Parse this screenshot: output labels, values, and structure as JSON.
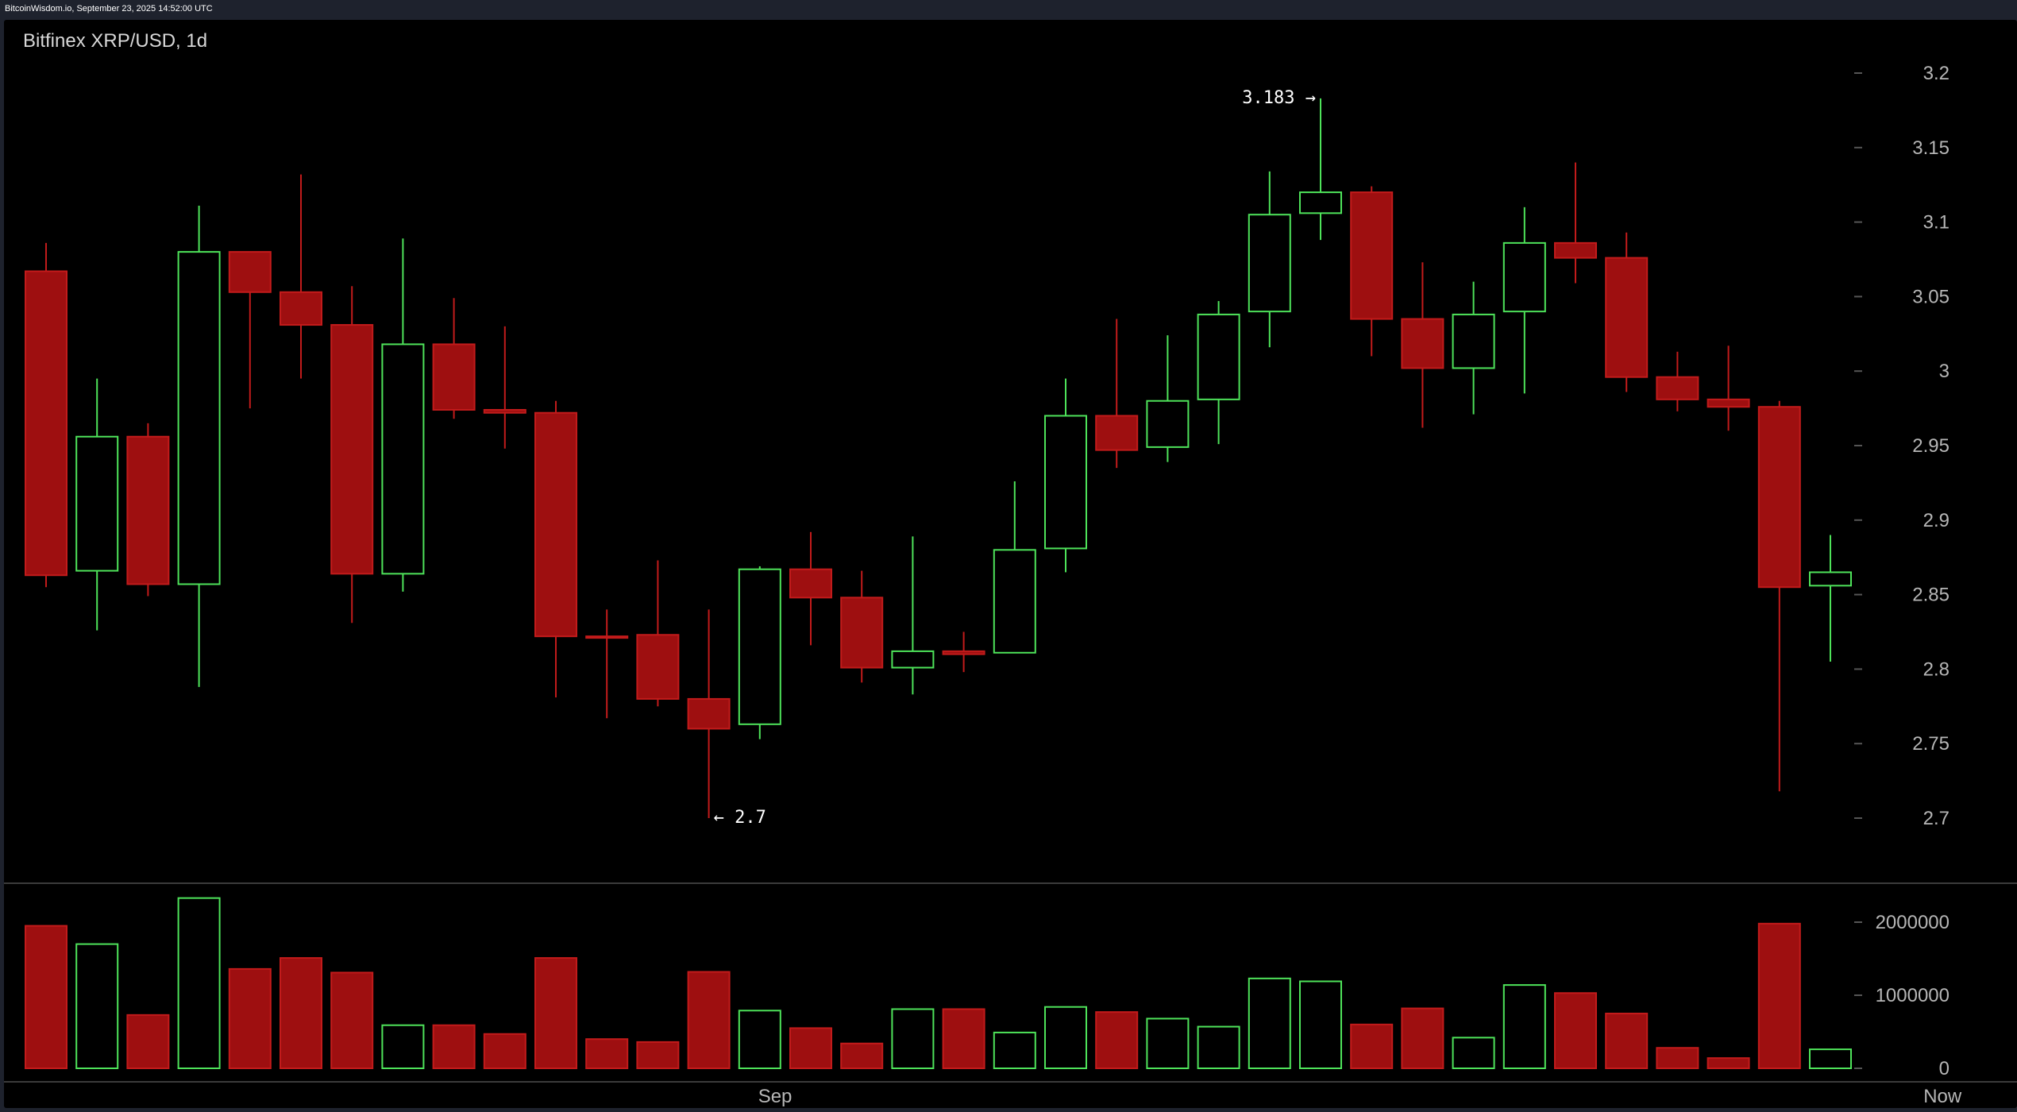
{
  "source_line": "BitcoinWisdom.io, September 23, 2025 14:52:00 UTC",
  "title": "Bitfinex XRP/USD, 1d",
  "colors": {
    "up": "#4ee35a",
    "down": "#9e0f10",
    "down_border": "#c21b1b",
    "axis_text": "#b6b6b6",
    "background": "#000000"
  },
  "chart_data": {
    "type": "candlestick",
    "title": "Bitfinex XRP/USD, 1d",
    "exchange": "Bitfinex",
    "pair": "XRP/USD",
    "interval": "1d",
    "price_ylim": [
      2.68,
      3.22
    ],
    "price_ticks": [
      "2.7",
      "2.75",
      "2.8",
      "2.85",
      "2.9",
      "2.95",
      "3",
      "3.05",
      "3.1",
      "3.15",
      "3.2"
    ],
    "volume_ylim": [
      0,
      2500000
    ],
    "volume_ticks": [
      "0",
      "1000000",
      "2000000"
    ],
    "x_labels": [
      {
        "label": "Sep",
        "index": 14.3
      },
      {
        "label": "Now",
        "index": 37.2
      }
    ],
    "annotations": [
      {
        "text": "3.183 →",
        "index": 25,
        "price": 3.183
      },
      {
        "text": "← 2.7",
        "index": 13,
        "price": 2.7
      }
    ],
    "candles": [
      {
        "open": 3.067,
        "high": 3.086,
        "low": 2.855,
        "close": 2.863,
        "volume": 1950000
      },
      {
        "open": 2.866,
        "high": 2.995,
        "low": 2.826,
        "close": 2.956,
        "volume": 1700000
      },
      {
        "open": 2.956,
        "high": 2.965,
        "low": 2.849,
        "close": 2.857,
        "volume": 730000
      },
      {
        "open": 2.857,
        "high": 3.111,
        "low": 2.788,
        "close": 3.08,
        "volume": 2330000
      },
      {
        "open": 3.08,
        "high": 3.08,
        "low": 2.975,
        "close": 3.053,
        "volume": 1360000
      },
      {
        "open": 3.053,
        "high": 3.132,
        "low": 2.995,
        "close": 3.031,
        "volume": 1510000
      },
      {
        "open": 3.031,
        "high": 3.057,
        "low": 2.831,
        "close": 2.864,
        "volume": 1310000
      },
      {
        "open": 2.864,
        "high": 3.089,
        "low": 2.852,
        "close": 3.018,
        "volume": 590000
      },
      {
        "open": 3.018,
        "high": 3.049,
        "low": 2.968,
        "close": 2.974,
        "volume": 590000
      },
      {
        "open": 2.974,
        "high": 3.03,
        "low": 2.948,
        "close": 2.972,
        "volume": 470000
      },
      {
        "open": 2.972,
        "high": 2.98,
        "low": 2.781,
        "close": 2.822,
        "volume": 1510000
      },
      {
        "open": 2.822,
        "high": 2.84,
        "low": 2.767,
        "close": 2.821,
        "volume": 400000
      },
      {
        "open": 2.823,
        "high": 2.873,
        "low": 2.775,
        "close": 2.78,
        "volume": 360000
      },
      {
        "open": 2.78,
        "high": 2.84,
        "low": 2.7,
        "close": 2.76,
        "volume": 1320000
      },
      {
        "open": 2.763,
        "high": 2.869,
        "low": 2.753,
        "close": 2.867,
        "volume": 790000
      },
      {
        "open": 2.867,
        "high": 2.892,
        "low": 2.816,
        "close": 2.848,
        "volume": 550000
      },
      {
        "open": 2.848,
        "high": 2.866,
        "low": 2.791,
        "close": 2.801,
        "volume": 340000
      },
      {
        "open": 2.801,
        "high": 2.889,
        "low": 2.783,
        "close": 2.812,
        "volume": 810000
      },
      {
        "open": 2.812,
        "high": 2.825,
        "low": 2.798,
        "close": 2.81,
        "volume": 810000
      },
      {
        "open": 2.811,
        "high": 2.926,
        "low": 2.811,
        "close": 2.88,
        "volume": 490000
      },
      {
        "open": 2.881,
        "high": 2.995,
        "low": 2.865,
        "close": 2.97,
        "volume": 840000
      },
      {
        "open": 2.97,
        "high": 3.035,
        "low": 2.935,
        "close": 2.947,
        "volume": 770000
      },
      {
        "open": 2.949,
        "high": 3.024,
        "low": 2.939,
        "close": 2.98,
        "volume": 680000
      },
      {
        "open": 2.981,
        "high": 3.047,
        "low": 2.951,
        "close": 3.038,
        "volume": 570000
      },
      {
        "open": 3.04,
        "high": 3.134,
        "low": 3.016,
        "close": 3.105,
        "volume": 1230000
      },
      {
        "open": 3.106,
        "high": 3.183,
        "low": 3.088,
        "close": 3.12,
        "volume": 1190000
      },
      {
        "open": 3.12,
        "high": 3.124,
        "low": 3.01,
        "close": 3.035,
        "volume": 600000
      },
      {
        "open": 3.035,
        "high": 3.073,
        "low": 2.962,
        "close": 3.002,
        "volume": 820000
      },
      {
        "open": 3.002,
        "high": 3.06,
        "low": 2.971,
        "close": 3.038,
        "volume": 420000
      },
      {
        "open": 3.04,
        "high": 3.11,
        "low": 2.985,
        "close": 3.086,
        "volume": 1140000
      },
      {
        "open": 3.086,
        "high": 3.14,
        "low": 3.059,
        "close": 3.076,
        "volume": 1030000
      },
      {
        "open": 3.076,
        "high": 3.093,
        "low": 2.986,
        "close": 2.996,
        "volume": 750000
      },
      {
        "open": 2.996,
        "high": 3.013,
        "low": 2.973,
        "close": 2.981,
        "volume": 280000
      },
      {
        "open": 2.981,
        "high": 3.017,
        "low": 2.96,
        "close": 2.976,
        "volume": 140000
      },
      {
        "open": 2.976,
        "high": 2.98,
        "low": 2.718,
        "close": 2.855,
        "volume": 1980000
      },
      {
        "open": 2.856,
        "high": 2.89,
        "low": 2.805,
        "close": 2.865,
        "volume": 260000
      }
    ]
  }
}
